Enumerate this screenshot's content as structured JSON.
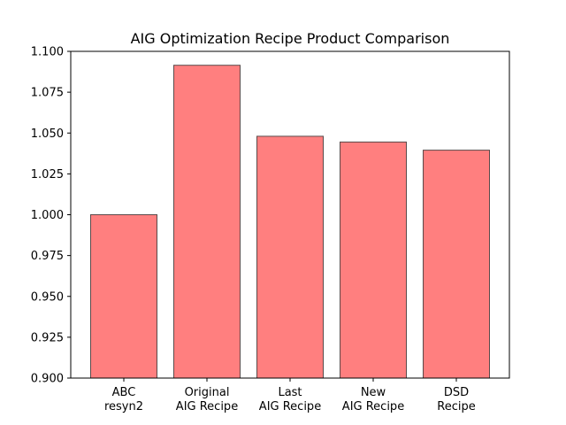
{
  "chart_data": {
    "type": "bar",
    "title": "AIG Optimization Recipe Product Comparison",
    "xlabel": "",
    "ylabel": "",
    "categories": [
      [
        "ABC",
        "resyn2"
      ],
      [
        "Original",
        "AIG Recipe"
      ],
      [
        "Last",
        "AIG Recipe"
      ],
      [
        "New",
        "AIG Recipe"
      ],
      [
        "DSD",
        "Recipe"
      ]
    ],
    "values": [
      1.0,
      1.0915,
      1.048,
      1.0445,
      1.0395
    ],
    "ylim": [
      0.9,
      1.1
    ],
    "yticks": [
      "0.900",
      "0.925",
      "0.950",
      "0.975",
      "1.000",
      "1.025",
      "1.050",
      "1.075",
      "1.100"
    ],
    "bar_color": "#ff7f7f",
    "bar_edge_color": "#5a4a4a",
    "grid": false,
    "legend": "none"
  }
}
